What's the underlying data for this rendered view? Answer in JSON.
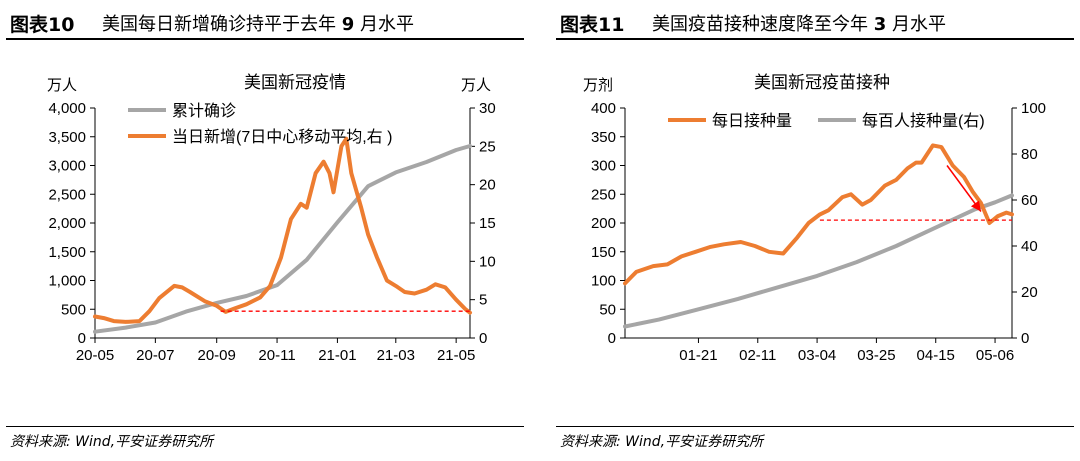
{
  "panels": [
    {
      "fig_label": "图表10",
      "title_pre": "美国每日新增确诊持平于去年 ",
      "title_num": "9",
      "title_post": " 月水平",
      "source": "资料来源: Wind,平安证券研究所"
    },
    {
      "fig_label": "图表11",
      "title_pre": "美国疫苗接种速度降至今年 ",
      "title_num": "3",
      "title_post": " 月水平",
      "source": "资料来源: Wind,平安证券研究所"
    }
  ],
  "chart_data": [
    {
      "type": "line",
      "title": "美国新冠疫情",
      "y_left_unit": "万人",
      "y_right_unit": "万人",
      "y_left_lim": [
        0,
        4000
      ],
      "y_left_ticks": [
        "0",
        "500",
        "1,000",
        "1,500",
        "2,000",
        "2,500",
        "3,000",
        "3,500",
        "4,000"
      ],
      "y_right_lim": [
        0,
        30
      ],
      "y_right_ticks": [
        "0",
        "5",
        "10",
        "15",
        "20",
        "25",
        "30"
      ],
      "x_range": [
        "2020-05-01",
        "2021-05-15"
      ],
      "x_ticks": [
        {
          "date": "2020-05-01",
          "label": "20-05"
        },
        {
          "date": "2020-07-01",
          "label": "20-07"
        },
        {
          "date": "2020-09-01",
          "label": "20-09"
        },
        {
          "date": "2020-11-01",
          "label": "20-11"
        },
        {
          "date": "2021-01-01",
          "label": "21-01"
        },
        {
          "date": "2021-03-01",
          "label": "21-03"
        },
        {
          "date": "2021-05-01",
          "label": "21-05"
        }
      ],
      "legend_position": "top-left",
      "series": [
        {
          "name": "累计确诊",
          "axis": "left",
          "color": "#a6a6a6",
          "points": [
            [
              "2020-05-01",
              110
            ],
            [
              "2020-06-01",
              180
            ],
            [
              "2020-07-01",
              270
            ],
            [
              "2020-08-01",
              460
            ],
            [
              "2020-09-01",
              610
            ],
            [
              "2020-10-01",
              730
            ],
            [
              "2020-11-01",
              920
            ],
            [
              "2020-12-01",
              1360
            ],
            [
              "2021-01-01",
              2010
            ],
            [
              "2021-02-01",
              2640
            ],
            [
              "2021-03-01",
              2880
            ],
            [
              "2021-04-01",
              3060
            ],
            [
              "2021-05-01",
              3270
            ],
            [
              "2021-05-15",
              3340
            ]
          ]
        },
        {
          "name": "当日新增(7日中心移动平均,右 )",
          "axis": "right",
          "color": "#ed7d31",
          "points": [
            [
              "2020-05-01",
              2.8
            ],
            [
              "2020-05-10",
              2.6
            ],
            [
              "2020-05-20",
              2.2
            ],
            [
              "2020-06-01",
              2.1
            ],
            [
              "2020-06-15",
              2.2
            ],
            [
              "2020-06-25",
              3.5
            ],
            [
              "2020-07-05",
              5.2
            ],
            [
              "2020-07-20",
              6.8
            ],
            [
              "2020-07-28",
              6.6
            ],
            [
              "2020-08-05",
              6.0
            ],
            [
              "2020-08-20",
              4.8
            ],
            [
              "2020-09-01",
              4.2
            ],
            [
              "2020-09-10",
              3.4
            ],
            [
              "2020-09-20",
              3.9
            ],
            [
              "2020-10-01",
              4.4
            ],
            [
              "2020-10-15",
              5.3
            ],
            [
              "2020-10-25",
              6.8
            ],
            [
              "2020-11-05",
              10.5
            ],
            [
              "2020-11-15",
              15.5
            ],
            [
              "2020-11-25",
              17.5
            ],
            [
              "2020-12-01",
              17.0
            ],
            [
              "2020-12-10",
              21.5
            ],
            [
              "2020-12-18",
              23.0
            ],
            [
              "2020-12-24",
              21.5
            ],
            [
              "2020-12-28",
              19.0
            ],
            [
              "2021-01-05",
              25.0
            ],
            [
              "2021-01-10",
              26.0
            ],
            [
              "2021-01-15",
              21.5
            ],
            [
              "2021-01-25",
              17.0
            ],
            [
              "2021-02-01",
              13.5
            ],
            [
              "2021-02-10",
              10.5
            ],
            [
              "2021-02-20",
              7.5
            ],
            [
              "2021-03-01",
              6.8
            ],
            [
              "2021-03-10",
              6.0
            ],
            [
              "2021-03-20",
              5.8
            ],
            [
              "2021-04-01",
              6.3
            ],
            [
              "2021-04-10",
              7.0
            ],
            [
              "2021-04-20",
              6.6
            ],
            [
              "2021-05-01",
              5.0
            ],
            [
              "2021-05-10",
              3.8
            ],
            [
              "2021-05-15",
              3.3
            ]
          ]
        }
      ],
      "annotation": {
        "type": "hline",
        "axis": "right",
        "value": 3.5,
        "x_from": "2020-09-05",
        "x_to": "2021-05-15",
        "color": "#ff0000",
        "style": "dashed"
      }
    },
    {
      "type": "line",
      "title": "美国新冠疫苗接种",
      "y_left_unit": "万剂",
      "y_left_lim": [
        0,
        400
      ],
      "y_left_ticks": [
        "0",
        "50",
        "100",
        "150",
        "200",
        "250",
        "300",
        "350",
        "400"
      ],
      "y_right_lim": [
        0,
        100
      ],
      "y_right_ticks": [
        "0",
        "20",
        "40",
        "60",
        "80",
        "100"
      ],
      "x_range": [
        "2020-12-26",
        "2021-05-12"
      ],
      "x_ticks": [
        {
          "date": "2021-01-21",
          "label": "01-21"
        },
        {
          "date": "2021-02-11",
          "label": "02-11"
        },
        {
          "date": "2021-03-04",
          "label": "03-04"
        },
        {
          "date": "2021-03-25",
          "label": "03-25"
        },
        {
          "date": "2021-04-15",
          "label": "04-15"
        },
        {
          "date": "2021-05-06",
          "label": "05-06"
        }
      ],
      "legend_position": "top",
      "series": [
        {
          "name": "每日接种量",
          "axis": "left",
          "color": "#ed7d31",
          "points": [
            [
              "2020-12-26",
              95
            ],
            [
              "2020-12-30",
              115
            ],
            [
              "2021-01-05",
              125
            ],
            [
              "2021-01-10",
              128
            ],
            [
              "2021-01-15",
              142
            ],
            [
              "2021-01-20",
              150
            ],
            [
              "2021-01-25",
              158
            ],
            [
              "2021-01-30",
              163
            ],
            [
              "2021-02-05",
              167
            ],
            [
              "2021-02-10",
              160
            ],
            [
              "2021-02-15",
              150
            ],
            [
              "2021-02-20",
              147
            ],
            [
              "2021-02-25",
              175
            ],
            [
              "2021-03-01",
              200
            ],
            [
              "2021-03-05",
              215
            ],
            [
              "2021-03-08",
              222
            ],
            [
              "2021-03-13",
              245
            ],
            [
              "2021-03-16",
              250
            ],
            [
              "2021-03-20",
              232
            ],
            [
              "2021-03-23",
              240
            ],
            [
              "2021-03-28",
              265
            ],
            [
              "2021-04-01",
              275
            ],
            [
              "2021-04-05",
              295
            ],
            [
              "2021-04-08",
              305
            ],
            [
              "2021-04-10",
              305
            ],
            [
              "2021-04-14",
              335
            ],
            [
              "2021-04-17",
              332
            ],
            [
              "2021-04-21",
              300
            ],
            [
              "2021-04-25",
              280
            ],
            [
              "2021-04-28",
              255
            ],
            [
              "2021-05-01",
              235
            ],
            [
              "2021-05-04",
              200
            ],
            [
              "2021-05-07",
              212
            ],
            [
              "2021-05-10",
              218
            ],
            [
              "2021-05-12",
              215
            ]
          ]
        },
        {
          "name": "每百人接种量(右)",
          "axis": "right",
          "color": "#a6a6a6",
          "points": [
            [
              "2020-12-26",
              5
            ],
            [
              "2021-01-07",
              8
            ],
            [
              "2021-01-21",
              12.5
            ],
            [
              "2021-02-04",
              17
            ],
            [
              "2021-02-18",
              22
            ],
            [
              "2021-03-04",
              27
            ],
            [
              "2021-03-18",
              33
            ],
            [
              "2021-04-01",
              40
            ],
            [
              "2021-04-15",
              48
            ],
            [
              "2021-04-29",
              56
            ],
            [
              "2021-05-06",
              59
            ],
            [
              "2021-05-12",
              62
            ]
          ]
        }
      ],
      "annotations": [
        {
          "type": "hline",
          "axis": "left",
          "value": 205,
          "x_from": "2021-03-05",
          "x_to": "2021-05-12",
          "color": "#ff0000",
          "style": "dashed"
        },
        {
          "type": "arrow",
          "axis": "left",
          "from": [
            "2021-04-19",
            300
          ],
          "to": [
            "2021-05-01",
            220
          ],
          "color": "#ff0000"
        }
      ]
    }
  ]
}
